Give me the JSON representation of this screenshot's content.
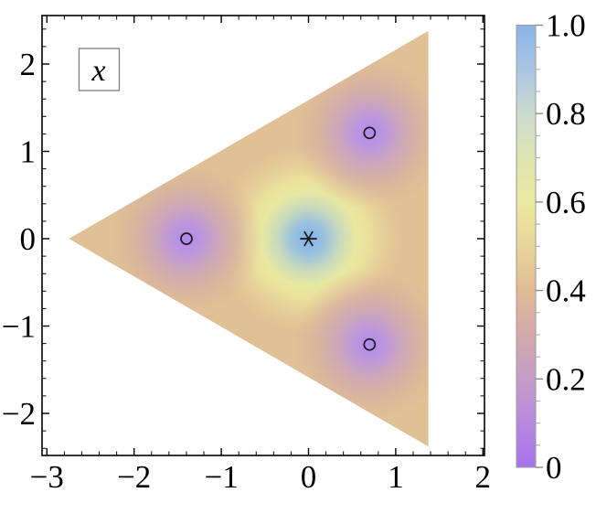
{
  "chart_data": {
    "type": "heatmap",
    "title": "",
    "xlabel": "",
    "ylabel": "",
    "x_axis": {
      "tick_values": [
        -3,
        -2,
        -1,
        0,
        1,
        2
      ],
      "tick_labels": [
        "−3",
        "−2",
        "−1",
        "0",
        "1",
        "2"
      ],
      "minor_tick_step": 0.2,
      "range": [
        -3.05,
        2.02
      ]
    },
    "y_axis": {
      "tick_values": [
        2,
        1,
        0,
        -1,
        -2
      ],
      "tick_labels": [
        "2",
        "1",
        "0",
        "−1",
        "−2"
      ],
      "minor_tick_step": 0.2,
      "range": [
        -2.48,
        2.56
      ]
    },
    "colorbar": {
      "tick_values": [
        1.0,
        0.8,
        0.6,
        0.4,
        0.2,
        0
      ],
      "tick_labels": [
        "1.0",
        "0.8",
        "0.6",
        "0.4",
        "0.2",
        "0"
      ],
      "minor_tick_step": 0.05,
      "range": [
        0,
        1
      ],
      "stops": [
        "#a873ec",
        "#b689e0",
        "#c69cc8",
        "#d3a9ab",
        "#e0bc95",
        "#e8d59b",
        "#ece9a0",
        "#dde4b0",
        "#cbdbcf",
        "#aac5e3",
        "#8ab4ea"
      ]
    },
    "region": {
      "shape": "triangle",
      "vertices": [
        [
          -2.75,
          0
        ],
        [
          1.375,
          2.38
        ],
        [
          1.375,
          -2.38
        ]
      ],
      "base_color": "#e0c095",
      "base_value": 0.45
    },
    "center_peak": {
      "position": [
        0,
        0
      ],
      "value": 1.0,
      "marker": "asterisk",
      "gradient": [
        "#7fb0ea",
        "#9cc2dc",
        "#c9dabd",
        "#e7e8a1",
        "#ebe19c",
        "#e6cf99",
        "#e2c295"
      ]
    },
    "minima": {
      "positions": [
        [
          -1.4,
          0
        ],
        [
          0.7,
          1.21
        ],
        [
          0.7,
          -1.21
        ]
      ],
      "value": 0.0,
      "marker": "circle",
      "gradient": [
        "#b189f0",
        "#bd97dd",
        "#cba6bb",
        "#d4ada6",
        "#ddb69a"
      ]
    },
    "annotation": {
      "label": "x"
    }
  }
}
